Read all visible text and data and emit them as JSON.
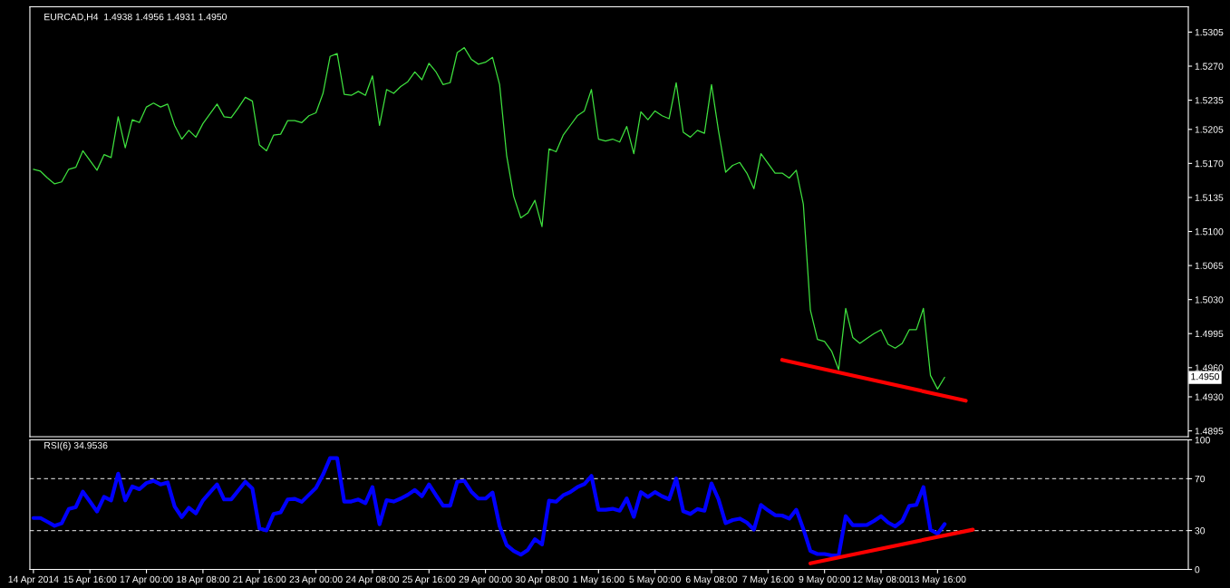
{
  "chart_data": [
    {
      "type": "line",
      "title": "EURCAD,H4  1.4938 1.4956 1.4931 1.4950",
      "ylim": [
        1.4889,
        1.5331
      ],
      "categories": [
        null,
        null,
        null,
        null,
        null,
        null,
        null,
        null,
        null,
        null,
        null,
        null,
        null,
        null,
        null,
        null,
        null,
        null,
        null,
        null,
        null,
        null,
        null,
        null,
        null,
        null,
        null,
        null,
        null,
        null,
        null,
        null,
        null,
        null,
        null,
        null,
        null,
        null,
        null,
        null,
        null,
        null,
        null,
        null,
        null,
        null,
        null,
        null,
        null,
        null,
        null,
        null,
        null,
        null,
        null,
        null,
        null,
        null,
        null,
        null,
        null,
        null,
        null,
        null,
        null,
        null,
        null,
        null,
        null,
        null,
        null,
        null,
        null,
        null,
        null,
        null,
        null,
        null,
        null,
        null,
        null,
        null,
        null,
        null,
        null,
        null,
        null,
        null,
        null,
        null,
        null,
        null,
        null,
        null,
        null,
        null,
        null,
        null,
        null,
        null,
        null,
        null,
        null,
        null,
        null,
        null,
        null,
        null,
        null,
        null,
        null,
        null,
        null,
        null,
        null,
        null,
        null,
        null,
        null,
        null,
        null,
        null,
        null,
        null,
        null,
        null,
        null,
        null,
        null,
        null,
        null,
        null,
        null,
        null,
        null,
        null,
        null,
        null,
        null,
        null,
        null,
        null,
        null,
        null,
        null,
        null,
        null,
        null,
        null,
        null,
        null,
        null,
        null,
        null,
        null,
        null,
        null,
        null,
        null,
        null,
        null,
        null,
        null,
        null
      ],
      "yticks": [
        1.5305,
        {
          "value": 1.527,
          "label": "1.5270"
        },
        1.5235,
        1.5205,
        {
          "value": 1.517,
          "label": "1.5170"
        },
        1.5135,
        {
          "value": 1.51,
          "label": "1.5100"
        },
        1.5065,
        {
          "value": 1.503,
          "label": "1.5030"
        },
        1.4995,
        {
          "value": 1.496,
          "label": "1.4960"
        },
        {
          "value": 1.493,
          "label": "1.4930"
        },
        1.4895
      ],
      "tick_labels": "y",
      "grid": false,
      "marker": "none",
      "line_style": "solid",
      "annotations": [
        "1.4950"
      ],
      "series": [
        {
          "color": "#3ee03e",
          "values": [
            1.5164,
            1.5162,
            1.5155,
            1.5149,
            1.5151,
            1.5164,
            1.5166,
            1.5183,
            1.5173,
            1.5163,
            1.5179,
            1.5176,
            1.5218,
            1.5186,
            1.5215,
            1.5212,
            1.5228,
            1.5232,
            1.5228,
            1.5231,
            1.5209,
            1.5195,
            1.5204,
            1.5197,
            1.5211,
            1.5221,
            1.5231,
            1.5218,
            1.5217,
            1.5227,
            1.5238,
            1.5234,
            1.5189,
            1.5183,
            1.5199,
            1.52,
            1.5214,
            1.5214,
            1.5212,
            1.5219,
            1.5222,
            1.5242,
            1.528,
            1.5283,
            1.5241,
            1.524,
            1.5244,
            1.524,
            1.526,
            1.5209,
            1.5246,
            1.5242,
            1.5249,
            1.5254,
            1.5264,
            1.5256,
            1.5273,
            1.5264,
            1.5251,
            1.5253,
            1.5284,
            1.5289,
            1.5277,
            1.5272,
            1.5274,
            1.5279,
            1.5251,
            1.5178,
            1.5136,
            1.5114,
            1.5119,
            1.5132,
            1.5105,
            1.5185,
            1.5182,
            1.5199,
            1.5209,
            1.5219,
            1.5224,
            1.5246,
            1.5195,
            1.5193,
            1.5195,
            1.5192,
            1.5208,
            1.518,
            1.5223,
            1.5215,
            1.5224,
            1.5219,
            1.5216,
            1.5253,
            1.5202,
            1.5197,
            1.5204,
            1.5201,
            1.5251,
            1.5203,
            1.5161,
            1.5168,
            1.5171,
            1.516,
            1.5144,
            1.518,
            1.517,
            1.516,
            1.516,
            1.5155,
            1.5163,
            1.5128,
            1.5019,
            1.4989,
            1.4987,
            1.4977,
            1.4958,
            1.5021,
            1.4991,
            1.4985,
            1.499,
            1.4995,
            1.4999,
            1.4984,
            1.498,
            1.4985,
            1.4999,
            1.4999,
            1.5021,
            1.4952,
            1.4938,
            1.495,
            null,
            null,
            null,
            null,
            null,
            null,
            null,
            null,
            null,
            null,
            null,
            null,
            null,
            null,
            null,
            null,
            null,
            null,
            null,
            null,
            null,
            null,
            null,
            null,
            null,
            null,
            null,
            null,
            null,
            null,
            null,
            null,
            null,
            null
          ]
        },
        {
          "type": "line",
          "color": "#ff0000",
          "values": [
            null,
            null,
            null,
            null,
            null,
            null,
            null,
            null,
            null,
            null,
            null,
            null,
            null,
            null,
            null,
            null,
            null,
            null,
            null,
            null,
            null,
            null,
            null,
            null,
            null,
            null,
            null,
            null,
            null,
            null,
            null,
            null,
            null,
            null,
            null,
            null,
            null,
            null,
            null,
            null,
            null,
            null,
            null,
            null,
            null,
            null,
            null,
            null,
            null,
            null,
            null,
            null,
            null,
            null,
            null,
            null,
            null,
            null,
            null,
            null,
            null,
            null,
            null,
            null,
            null,
            null,
            null,
            null,
            null,
            null,
            null,
            null,
            null,
            null,
            null,
            null,
            null,
            null,
            null,
            null,
            null,
            null,
            null,
            null,
            null,
            null,
            null,
            null,
            null,
            null,
            null,
            null,
            null,
            null,
            null,
            null,
            null,
            null,
            null,
            null,
            null,
            null,
            null,
            null,
            null,
            null,
            1.4968,
            null,
            null,
            null,
            null,
            null,
            null,
            null,
            null,
            null,
            null,
            null,
            null,
            null,
            null,
            null,
            null,
            null,
            null,
            null,
            null,
            null,
            null,
            null,
            null,
            null,
            1.4926,
            null,
            null,
            null,
            null,
            null,
            null,
            null,
            null,
            null,
            null,
            null,
            null,
            null,
            null,
            null,
            null,
            null,
            null,
            null,
            null,
            null,
            null,
            null,
            null,
            null,
            null,
            null,
            null,
            null,
            null,
            null
          ]
        }
      ]
    },
    {
      "type": "line",
      "title": "RSI(6) 34.9536",
      "ylim": [
        0,
        100
      ],
      "yticks": [
        100,
        70,
        30,
        0
      ],
      "categories": [
        "14 Apr 2014",
        null,
        null,
        null,
        null,
        null,
        null,
        null,
        "15 Apr 16:00",
        null,
        null,
        null,
        null,
        null,
        null,
        null,
        "17 Apr 00:00",
        null,
        null,
        null,
        null,
        null,
        null,
        null,
        "18 Apr 08:00",
        null,
        null,
        null,
        null,
        null,
        null,
        null,
        "21 Apr 16:00",
        null,
        null,
        null,
        null,
        null,
        null,
        null,
        "23 Apr 00:00",
        null,
        null,
        null,
        null,
        null,
        null,
        null,
        "24 Apr 08:00",
        null,
        null,
        null,
        null,
        null,
        null,
        null,
        "25 Apr 16:00",
        null,
        null,
        null,
        null,
        null,
        null,
        null,
        "29 Apr 00:00",
        null,
        null,
        null,
        null,
        null,
        null,
        null,
        "30 Apr 08:00",
        null,
        null,
        null,
        null,
        null,
        null,
        null,
        "1 May 16:00",
        null,
        null,
        null,
        null,
        null,
        null,
        null,
        "5 May 00:00",
        null,
        null,
        null,
        null,
        null,
        null,
        null,
        "6 May 08:00",
        null,
        null,
        null,
        null,
        null,
        null,
        null,
        "7 May 16:00",
        null,
        null,
        null,
        null,
        null,
        null,
        null,
        "9 May 00:00",
        null,
        null,
        null,
        null,
        null,
        null,
        null,
        "12 May 08:00",
        null,
        null,
        null,
        null,
        null,
        null,
        null,
        "13 May 16:00",
        null,
        null,
        null,
        null,
        null,
        null,
        null,
        null,
        null,
        null,
        null,
        null,
        null,
        null,
        null,
        null,
        null,
        null,
        null,
        null,
        null,
        null,
        null,
        null,
        null,
        null,
        null,
        null,
        null,
        null,
        null,
        null,
        null,
        null,
        null
      ],
      "grid": false,
      "marker": "none",
      "line_style": "solid",
      "ref_lines": [
        {
          "axis": "y",
          "value": 70,
          "color": "#c0c0c0",
          "line_style": "dashed"
        },
        {
          "axis": "y",
          "value": 30,
          "color": "#c0c0c0",
          "line_style": "dashed"
        }
      ],
      "series": [
        {
          "color": "#0000ff",
          "values": [
            39.7,
            39.7,
            36.7,
            33.7,
            35.6,
            46.6,
            48.1,
            60.0,
            52.4,
            44.7,
            56.0,
            53.3,
            73.9,
            53.3,
            64.1,
            61.9,
            66.7,
            68.4,
            65.6,
            67.2,
            48.5,
            40.4,
            47.6,
            43.3,
            53.3,
            59.5,
            65.6,
            54.0,
            54.0,
            60.9,
            67.7,
            62.4,
            31.7,
            30.1,
            42.8,
            44.0,
            54.0,
            54.5,
            52.2,
            57.6,
            62.9,
            73.2,
            85.9,
            85.9,
            52.4,
            52.4,
            54.0,
            51.2,
            63.6,
            34.9,
            53.5,
            52.4,
            54.7,
            57.6,
            61.3,
            56.5,
            65.6,
            57.2,
            49.2,
            49.2,
            67.7,
            68.4,
            60.0,
            54.7,
            54.7,
            59.3,
            33.6,
            18.8,
            14.3,
            11.4,
            15.1,
            23.3,
            19.3,
            53.1,
            52.3,
            57.2,
            59.7,
            63.5,
            65.9,
            72.2,
            46.1,
            46.1,
            46.8,
            45.3,
            54.8,
            40.6,
            59.7,
            56.0,
            59.7,
            56.5,
            54.2,
            70.1,
            44.9,
            42.8,
            46.6,
            45.3,
            66.4,
            54.0,
            35.7,
            38.1,
            39.2,
            36.2,
            30.7,
            49.8,
            45.6,
            41.9,
            41.6,
            39.2,
            46.1,
            31.2,
            14.3,
            11.9,
            11.9,
            10.8,
            10.8,
            41.1,
            34.2,
            34.2,
            34.4,
            37.4,
            41.1,
            36.2,
            33.2,
            37.4,
            49.0,
            49.8,
            63.5,
            30.7,
            27.5,
            35.0,
            null,
            null,
            null,
            null,
            null,
            null,
            null,
            null,
            null,
            null,
            null,
            null,
            null,
            null,
            null,
            null,
            null,
            null,
            null,
            null,
            null,
            null,
            null,
            null,
            null,
            null,
            null,
            null,
            null,
            null,
            null,
            null,
            null,
            null
          ]
        },
        {
          "type": "line",
          "color": "#ff0000",
          "values": [
            null,
            null,
            null,
            null,
            null,
            null,
            null,
            null,
            null,
            null,
            null,
            null,
            null,
            null,
            null,
            null,
            null,
            null,
            null,
            null,
            null,
            null,
            null,
            null,
            null,
            null,
            null,
            null,
            null,
            null,
            null,
            null,
            null,
            null,
            null,
            null,
            null,
            null,
            null,
            null,
            null,
            null,
            null,
            null,
            null,
            null,
            null,
            null,
            null,
            null,
            null,
            null,
            null,
            null,
            null,
            null,
            null,
            null,
            null,
            null,
            null,
            null,
            null,
            null,
            null,
            null,
            null,
            null,
            null,
            null,
            null,
            null,
            null,
            null,
            null,
            null,
            null,
            null,
            null,
            null,
            null,
            null,
            null,
            null,
            null,
            null,
            null,
            null,
            null,
            null,
            null,
            null,
            null,
            null,
            null,
            null,
            null,
            null,
            null,
            null,
            null,
            null,
            null,
            null,
            null,
            null,
            null,
            null,
            null,
            null,
            4.7,
            null,
            null,
            null,
            null,
            null,
            null,
            null,
            null,
            null,
            null,
            null,
            null,
            null,
            null,
            null,
            null,
            null,
            null,
            null,
            null,
            null,
            null,
            30.7,
            null,
            null,
            null,
            null,
            null,
            null,
            null,
            null,
            null,
            null,
            null,
            null,
            null,
            null,
            null,
            null,
            null,
            null,
            null,
            null,
            null,
            null,
            null,
            null,
            null,
            null,
            null,
            null,
            null,
            null
          ]
        }
      ]
    }
  ]
}
